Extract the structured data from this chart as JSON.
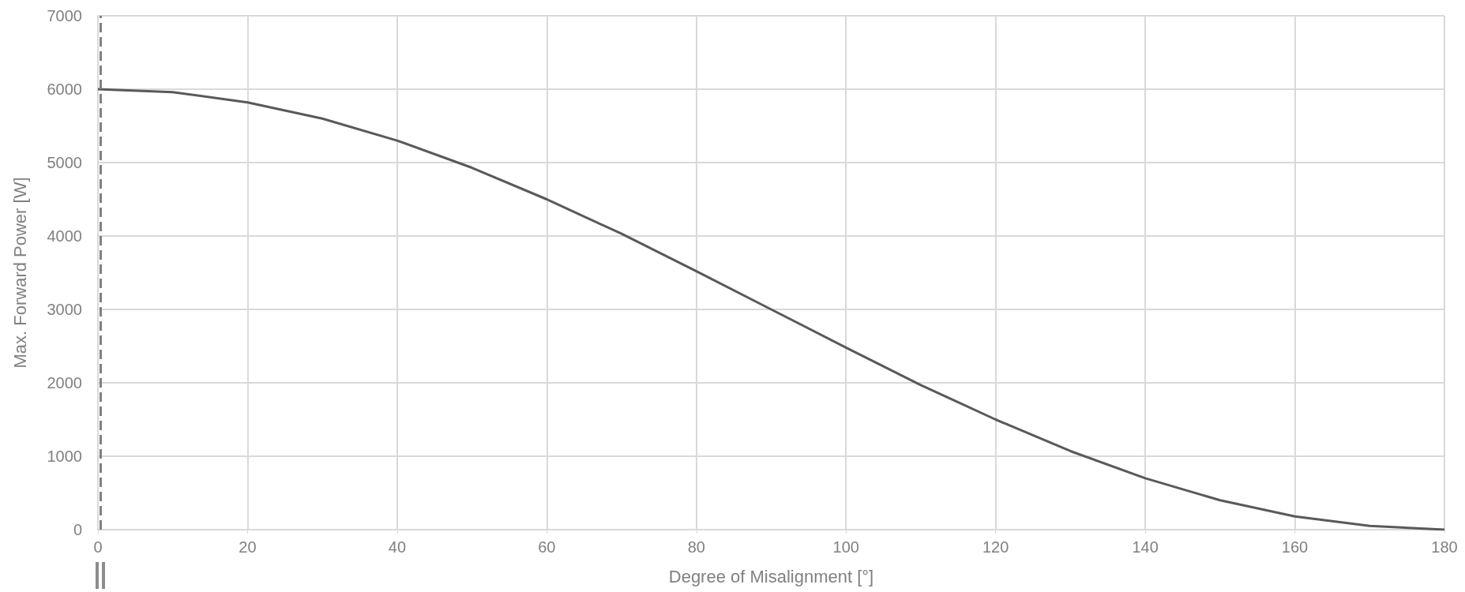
{
  "chart_data": {
    "type": "line",
    "xlabel": "Degree of Misalignment [°]",
    "ylabel": "Max. Forward Power [W]",
    "x": [
      0,
      10,
      20,
      30,
      40,
      50,
      60,
      70,
      80,
      90,
      100,
      110,
      120,
      130,
      140,
      150,
      160,
      170,
      180
    ],
    "series": [
      {
        "color": "#595959",
        "values": [
          6000,
          5960,
          5820,
          5600,
          5300,
          4930,
          4500,
          4030,
          3520,
          3000,
          2480,
          1970,
          1500,
          1070,
          700,
          400,
          180,
          50,
          0
        ]
      }
    ],
    "xlim": [
      0,
      180
    ],
    "xticks": [
      0,
      20,
      40,
      60,
      80,
      100,
      120,
      140,
      160,
      180
    ],
    "ylim": [
      0,
      7000
    ],
    "yticks": [
      0,
      1000,
      2000,
      3000,
      4000,
      5000,
      6000,
      7000
    ],
    "grid": true,
    "marker": "none",
    "line_style": "solid",
    "ref_lines": [
      {
        "axis": "x",
        "value": 0.3,
        "color": "#808080",
        "line_style": "dashed"
      }
    ]
  }
}
